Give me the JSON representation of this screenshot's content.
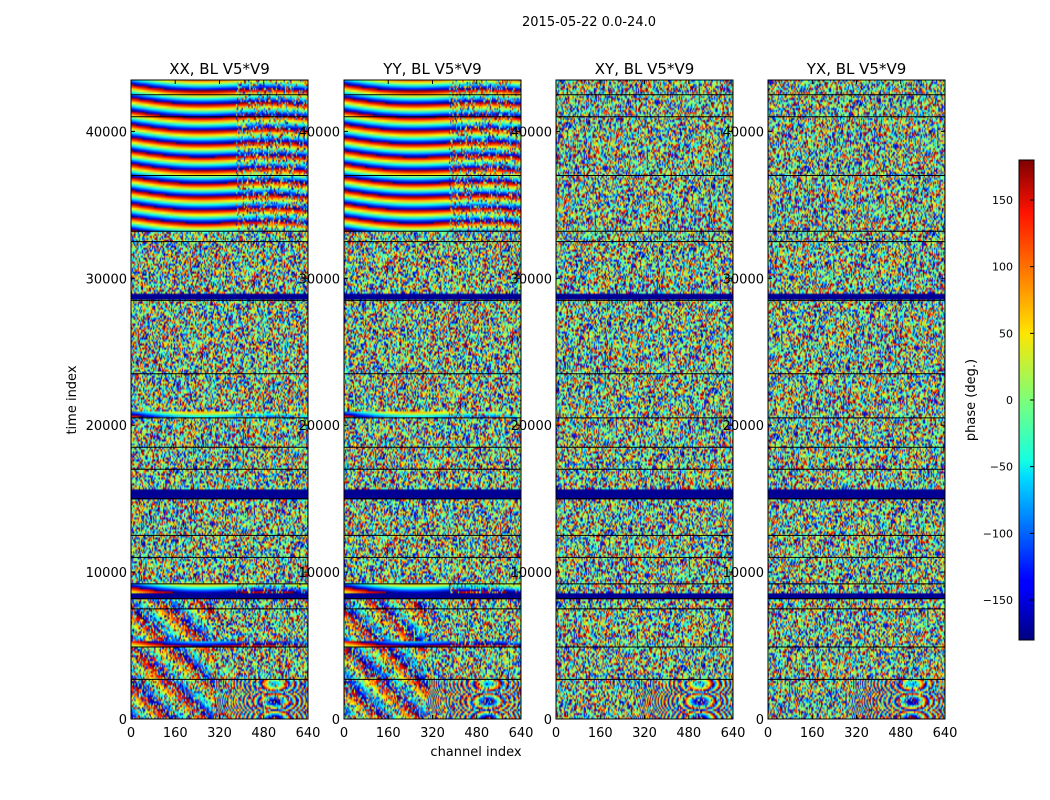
{
  "figure": {
    "suptitle": "2015-05-22 0.0-24.0"
  },
  "chart_data": {
    "type": "heatmap",
    "title": "2015-05-22 0.0-24.0",
    "xlabel": "channel index",
    "ylabel": "time index",
    "xlim": [
      0,
      640
    ],
    "ylim": [
      0,
      43500
    ],
    "x_ticks": [
      0,
      160,
      320,
      480,
      640
    ],
    "y_ticks": [
      0,
      10000,
      20000,
      30000,
      40000
    ],
    "panels": [
      {
        "title": "XX, BL V5*V9",
        "polarization": "XX",
        "baseline": "V5*V9"
      },
      {
        "title": "YY, BL V5*V9",
        "polarization": "YY",
        "baseline": "V5*V9"
      },
      {
        "title": "XY, BL V5*V9",
        "polarization": "XY",
        "baseline": "V5*V9"
      },
      {
        "title": "YX, BL V5*V9",
        "polarization": "YX",
        "baseline": "V5*V9"
      }
    ],
    "colorbar": {
      "label": "phase (deg.)",
      "range": [
        -180,
        180
      ],
      "ticks": [
        -150,
        -100,
        -50,
        0,
        50,
        100,
        150
      ],
      "colormap": "jet"
    },
    "time_segments": [
      {
        "start": 0,
        "end": 2700,
        "kind": "noise"
      },
      {
        "start": 2700,
        "end": 4900,
        "kind": "noise"
      },
      {
        "start": 4900,
        "end": 5300,
        "kind": "fringe"
      },
      {
        "start": 5300,
        "end": 7500,
        "kind": "noise"
      },
      {
        "start": 7500,
        "end": 8200,
        "kind": "noise"
      },
      {
        "start": 8200,
        "end": 8600,
        "kind": "blank"
      },
      {
        "start": 8600,
        "end": 9200,
        "kind": "fringe"
      },
      {
        "start": 9200,
        "end": 11000,
        "kind": "noise"
      },
      {
        "start": 11000,
        "end": 15000,
        "kind": "noise"
      },
      {
        "start": 15000,
        "end": 15700,
        "kind": "blank"
      },
      {
        "start": 15700,
        "end": 18500,
        "kind": "noise"
      },
      {
        "start": 18500,
        "end": 20500,
        "kind": "noise"
      },
      {
        "start": 20500,
        "end": 21000,
        "kind": "fringe"
      },
      {
        "start": 21000,
        "end": 28500,
        "kind": "noise"
      },
      {
        "start": 28500,
        "end": 29000,
        "kind": "blank"
      },
      {
        "start": 29000,
        "end": 32500,
        "kind": "noise"
      },
      {
        "start": 32500,
        "end": 33200,
        "kind": "noise"
      },
      {
        "start": 33200,
        "end": 41000,
        "kind": "fringe"
      },
      {
        "start": 41000,
        "end": 43500,
        "kind": "fringe"
      }
    ],
    "separator_lines": [
      2700,
      4900,
      7500,
      8200,
      9200,
      11000,
      12500,
      15000,
      17000,
      18500,
      20500,
      23500,
      28500,
      32500,
      33200,
      37000,
      41000,
      42500
    ]
  }
}
